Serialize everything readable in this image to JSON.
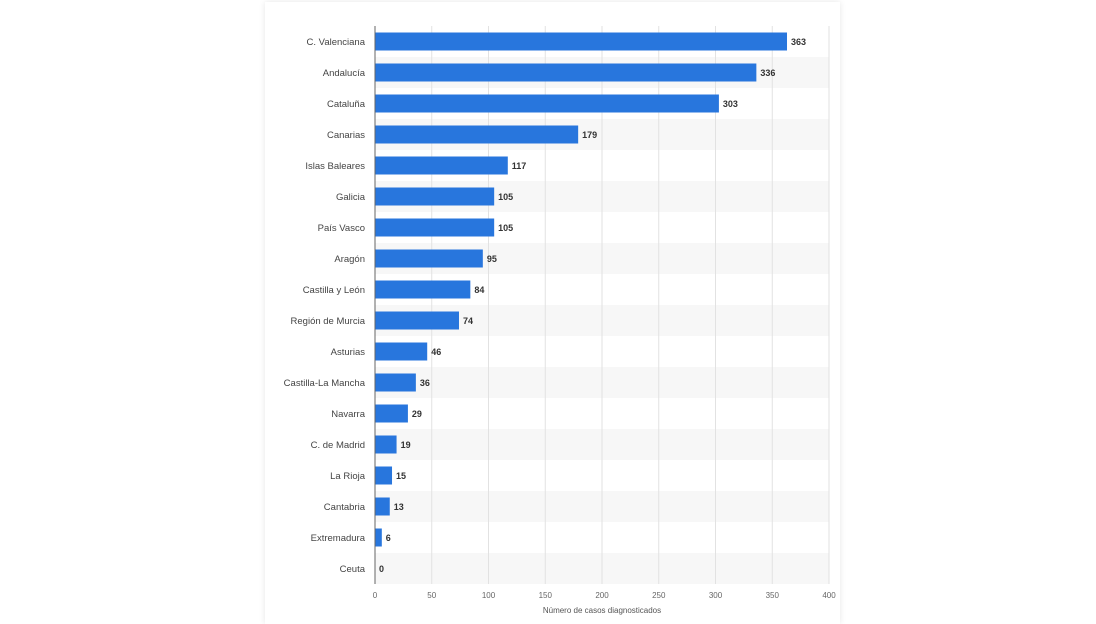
{
  "chart_data": {
    "type": "bar",
    "orientation": "horizontal",
    "categories": [
      "C. Valenciana",
      "Andalucía",
      "Cataluña",
      "Canarias",
      "Islas Baleares",
      "Galicia",
      "País Vasco",
      "Aragón",
      "Castilla y León",
      "Región de Murcia",
      "Asturias",
      "Castilla-La Mancha",
      "Navarra",
      "C. de Madrid",
      "La Rioja",
      "Cantabria",
      "Extremadura",
      "Ceuta"
    ],
    "values": [
      363,
      336,
      303,
      179,
      117,
      105,
      105,
      95,
      84,
      74,
      46,
      36,
      29,
      19,
      15,
      13,
      6,
      0
    ],
    "xlabel": "Número de casos diagnosticados",
    "ylabel": "",
    "xlim": [
      0,
      400
    ],
    "xticks": [
      0,
      50,
      100,
      150,
      200,
      250,
      300,
      350,
      400
    ],
    "grid": true,
    "legend": "none",
    "bar_color": "#2876dd",
    "band_color": "#f7f7f7"
  }
}
